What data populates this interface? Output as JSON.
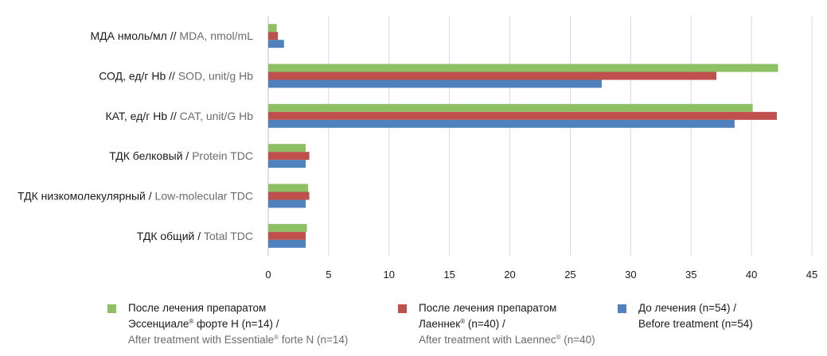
{
  "chart_data": {
    "type": "bar",
    "orientation": "horizontal",
    "categories": [
      {
        "ru": "МДА нмоль/мл",
        "sep": " // ",
        "en": "MDA, nmol/mL"
      },
      {
        "ru": "СОД, ед/г Hb",
        "sep": " // ",
        "en": "SOD, unit/g Hb"
      },
      {
        "ru": "КАТ, ед/г Hb",
        "sep": " // ",
        "en": "CAT, unit/G Hb"
      },
      {
        "ru": "ТДК белковый",
        "sep": " / ",
        "en": "Protein TDC"
      },
      {
        "ru": "ТДК низкомолекулярный",
        "sep": " / ",
        "en": "Low-molecular TDC"
      },
      {
        "ru": "ТДК общий",
        "sep": " / ",
        "en": "Total TDC"
      }
    ],
    "series": [
      {
        "color": "#8dc063",
        "values": [
          0.7,
          42.2,
          40.1,
          3.1,
          3.3,
          3.2
        ]
      },
      {
        "color": "#c0504d",
        "values": [
          0.8,
          37.1,
          42.1,
          3.4,
          3.4,
          3.1
        ]
      },
      {
        "color": "#4f81bd",
        "values": [
          1.3,
          27.6,
          38.6,
          3.1,
          3.1,
          3.1
        ]
      }
    ],
    "xlim": [
      0,
      45
    ],
    "xticks": [
      "0",
      "5",
      "10",
      "15",
      "20",
      "25",
      "30",
      "35",
      "40",
      "45"
    ],
    "grid": true,
    "legend_position": "bottom"
  },
  "legend": [
    {
      "color": "#8dc063",
      "ru_line1": "После лечения препаратом",
      "ru_line2_pre": "Эссенциале",
      "ru_line2_sup": "®",
      "ru_line2_post": " форте Н (n=14) /",
      "en_pre": "After treatment with Essentiale",
      "en_sup": "®",
      "en_post": " forte N (n=14)"
    },
    {
      "color": "#c0504d",
      "ru_line1": "После лечения препаратом",
      "ru_line2_pre": "Лаеннек",
      "ru_line2_sup": "®",
      "ru_line2_post": " (n=40) /",
      "en_pre": "After treatment with Laennec",
      "en_sup": "®",
      "en_post": " (n=40)"
    },
    {
      "color": "#4f81bd",
      "ru_line1": "До лечения (n=54) /",
      "ru_line2": "Before treatment (n=54)"
    }
  ]
}
